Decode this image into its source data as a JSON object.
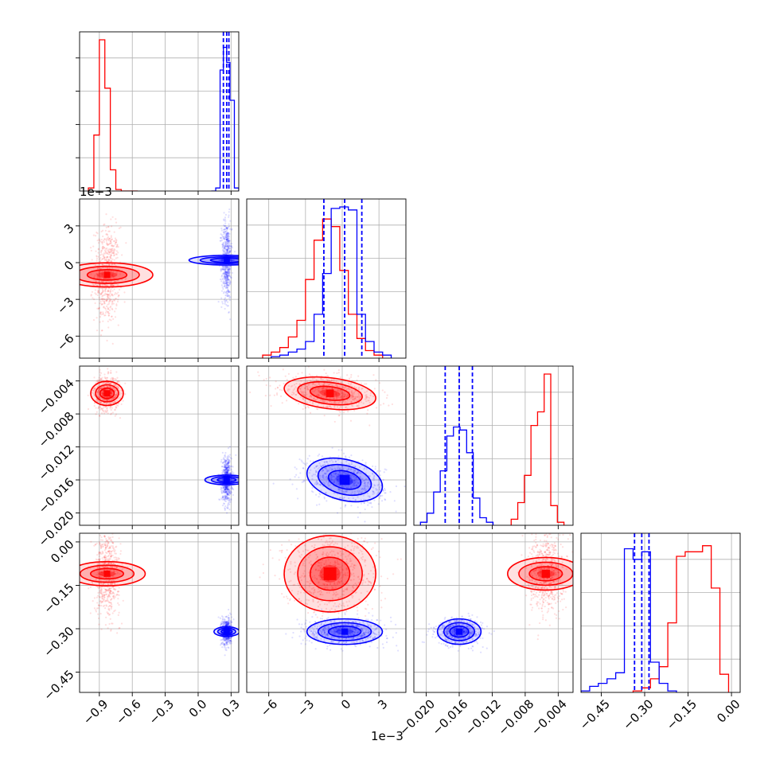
{
  "figure": {
    "colors": {
      "red": "#ff0000",
      "blue": "#0000ff",
      "grid": "#b0b0b0",
      "frame": "#000000"
    },
    "offset_labels": {
      "x_param2": "1e−3",
      "y_param2": "1e−3"
    },
    "ticks": {
      "p1": [
        "−0.9",
        "−0.6",
        "−0.3",
        "0.0",
        "0.3"
      ],
      "p2": [
        "−6",
        "−3",
        "0",
        "3"
      ],
      "p2_y": [
        "3",
        "0",
        "−3",
        "−6"
      ],
      "p3": [
        "−0.020",
        "−0.016",
        "−0.012",
        "−0.008",
        "−0.004"
      ],
      "p3_y": [
        "−0.004",
        "−0.008",
        "−0.012",
        "−0.016",
        "−0.020"
      ],
      "p4": [
        "−0.45",
        "−0.30",
        "−0.15",
        "0.00"
      ],
      "p4_y": [
        "0.00",
        "−0.15",
        "−0.30",
        "−0.45"
      ]
    }
  },
  "chart_data": {
    "type": "scatter",
    "subtype": "corner plot (pairwise posterior samples with 1D histograms)",
    "grid": true,
    "parameters": [
      {
        "index": 1,
        "range": [
          -1.08,
          0.37
        ],
        "offset_label": ""
      },
      {
        "index": 2,
        "range": [
          -0.0078,
          0.0052
        ],
        "offset_label": "1e−3"
      },
      {
        "index": 3,
        "range": [
          -0.0215,
          -0.0022
        ],
        "offset_label": ""
      },
      {
        "index": 4,
        "range": [
          -0.52,
          0.03
        ],
        "offset_label": ""
      }
    ],
    "series": [
      {
        "name": "",
        "color": "#ff0000",
        "means": [
          -0.83,
          -0.001,
          -0.0055,
          -0.11
        ],
        "stds": [
          0.05,
          0.0017,
          0.0009,
          0.06
        ],
        "correlation_2_3": -0.3,
        "histograms": {
          "p1": {
            "edges": [
              -1.0,
              -0.95,
              -0.9,
              -0.85,
              -0.8,
              -0.75,
              -0.7,
              -0.65,
              -0.6,
              -0.55
            ],
            "counts": [
              0.02,
              0.37,
              1.0,
              0.68,
              0.14,
              0.01,
              0,
              0,
              0
            ]
          },
          "p2": {
            "edges": [
              -0.0065,
              -0.0058,
              -0.0051,
              -0.0044,
              -0.0037,
              -0.003,
              -0.0023,
              -0.0016,
              -0.0009,
              -0.0002,
              0.0005,
              0.0012,
              0.0019,
              0.0026,
              0.0033
            ],
            "counts": [
              0.02,
              0.04,
              0.07,
              0.14,
              0.25,
              0.52,
              0.78,
              0.92,
              0.87,
              0.58,
              0.29,
              0.13,
              0.05,
              0.02
            ]
          },
          "p3": {
            "edges": [
              -0.0097,
              -0.0089,
              -0.0081,
              -0.0073,
              -0.0065,
              -0.0057,
              -0.0049,
              -0.0041,
              -0.0033
            ],
            "counts": [
              0.04,
              0.15,
              0.33,
              0.66,
              0.75,
              1.0,
              0.13,
              0.02
            ]
          },
          "p4": {
            "edges": [
              -0.34,
              -0.31,
              -0.28,
              -0.25,
              -0.22,
              -0.19,
              -0.16,
              -0.13,
              -0.1,
              -0.07,
              -0.04,
              -0.01
            ],
            "counts": [
              0.01,
              0.03,
              0.09,
              0.17,
              0.46,
              0.9,
              0.93,
              0.93,
              0.97,
              0.69,
              0.12
            ]
          }
        }
      },
      {
        "name": "",
        "color": "#0000ff",
        "means": [
          0.26,
          0.0002,
          -0.016,
          -0.31
        ],
        "stds": [
          0.02,
          0.0014,
          0.0012,
          0.02
        ],
        "correlation_2_3": -0.3,
        "histograms": {
          "p1": {
            "edges": [
              0.12,
              0.16,
              0.2,
              0.23,
              0.26,
              0.29,
              0.33,
              0.37
            ],
            "counts": [
              0.0,
              0.02,
              0.8,
              0.95,
              0.85,
              0.6,
              0.02
            ]
          },
          "p2": {
            "edges": [
              -0.0058,
              -0.0051,
              -0.0044,
              -0.0037,
              -0.003,
              -0.0023,
              -0.0016,
              -0.0009,
              -0.0002,
              0.0005,
              0.0012,
              0.0019,
              0.0026,
              0.0033,
              0.004
            ],
            "counts": [
              0.01,
              0.02,
              0.04,
              0.06,
              0.11,
              0.29,
              0.56,
              0.99,
              1.0,
              0.98,
              0.29,
              0.11,
              0.04,
              0.02
            ]
          },
          "p3": {
            "edges": [
              -0.0207,
              -0.0199,
              -0.0191,
              -0.0183,
              -0.0175,
              -0.0167,
              -0.0159,
              -0.0151,
              -0.0143,
              -0.0135,
              -0.0127,
              -0.0119
            ],
            "counts": [
              0.02,
              0.08,
              0.22,
              0.36,
              0.59,
              0.65,
              0.63,
              0.48,
              0.18,
              0.05,
              0.02
            ]
          },
          "p4": {
            "edges": [
              -0.52,
              -0.49,
              -0.46,
              -0.43,
              -0.4,
              -0.37,
              -0.34,
              -0.31,
              -0.28,
              -0.25,
              -0.22,
              -0.19
            ],
            "counts": [
              0.01,
              0.04,
              0.06,
              0.09,
              0.13,
              0.95,
              0.88,
              0.93,
              0.2,
              0.06,
              0.01
            ]
          }
        },
        "quantiles": {
          "p1": [
            0.23,
            0.26,
            0.28
          ],
          "p2": [
            -0.0015,
            0.0002,
            0.0016
          ],
          "p3": [
            -0.0177,
            -0.016,
            -0.0144
          ],
          "p4": [
            -0.335,
            -0.31,
            -0.285
          ]
        }
      }
    ]
  }
}
